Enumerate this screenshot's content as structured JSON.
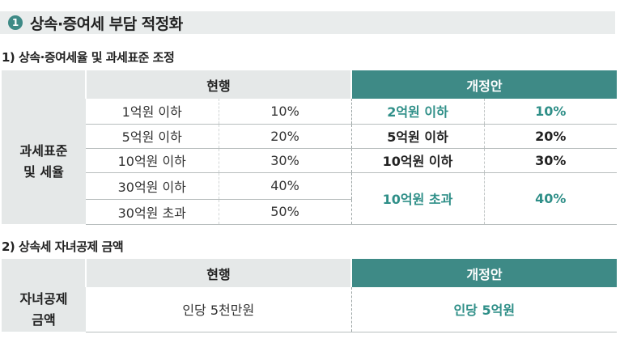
{
  "section": {
    "number": "1",
    "title": "상속·증여세 부담 적정화"
  },
  "table1": {
    "subtitle": "1) 상속·증여세율 및 과세표준 조정",
    "col_current": "현행",
    "col_revised": "개정안",
    "row_label": "과세표준\n및 세율",
    "current": [
      {
        "bracket": "1억원 이하",
        "rate": "10%"
      },
      {
        "bracket": "5억원 이하",
        "rate": "20%"
      },
      {
        "bracket": "10억원 이하",
        "rate": "30%"
      },
      {
        "bracket": "30억원 이하",
        "rate": "40%"
      },
      {
        "bracket": "30억원 초과",
        "rate": "50%"
      }
    ],
    "revised": [
      {
        "bracket": "2억원 이하",
        "rate": "10%"
      },
      {
        "bracket": "5억원 이하",
        "rate": "20%"
      },
      {
        "bracket": "10억원 이하",
        "rate": "30%"
      },
      {
        "bracket": "10억원 초과",
        "rate": "40%"
      }
    ]
  },
  "table2": {
    "subtitle": "2) 상속세 자녀공제 금액",
    "col_current": "현행",
    "col_revised": "개정안",
    "row_label": "자녀공제\n금액",
    "current_value": "인당 5천만원",
    "revised_value": "인당 5억원"
  },
  "colors": {
    "accent": "#3e8a86",
    "highlight_text": "#2f8f88",
    "header_bg": "#e5e8e8"
  }
}
